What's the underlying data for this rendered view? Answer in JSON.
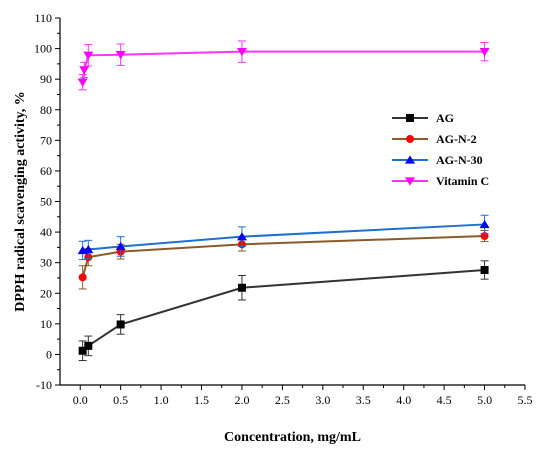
{
  "chart_data": {
    "type": "line",
    "xlabel": "Concentration, mg/mL",
    "ylabel": "DPPH radical scavenging activity, %",
    "xlim": [
      -0.25,
      5.5
    ],
    "ylim": [
      -10,
      110
    ],
    "xticks": [
      0.0,
      0.5,
      1.0,
      1.5,
      2.0,
      2.5,
      3.0,
      3.5,
      4.0,
      4.5,
      5.0,
      5.5
    ],
    "xtick_labels": [
      "0.0",
      "0.5",
      "1.0",
      "1.5",
      "2.0",
      "2.5",
      "3.0",
      "3.5",
      "4.0",
      "4.5",
      "5.0",
      "5.5"
    ],
    "yticks": [
      -10,
      0,
      10,
      20,
      30,
      40,
      50,
      60,
      70,
      80,
      90,
      100,
      110
    ],
    "ytick_labels": [
      "-10",
      "0",
      "10",
      "20",
      "30",
      "40",
      "50",
      "60",
      "70",
      "80",
      "90",
      "100",
      "110"
    ],
    "legend_position": "right-center",
    "grid": false,
    "series": [
      {
        "name": "AG",
        "color": "#333333",
        "marker_color": "#000000",
        "marker": "square",
        "x": [
          0.03,
          0.1,
          0.5,
          2.0,
          5.0
        ],
        "y": [
          1.2,
          2.8,
          9.8,
          21.8,
          27.6
        ],
        "err": [
          3.2,
          3.2,
          3.2,
          4.0,
          3.0
        ]
      },
      {
        "name": "AG-N-2",
        "color": "#8B5A2B",
        "marker_color": "#ff0000",
        "marker": "circle",
        "x": [
          0.03,
          0.1,
          0.5,
          2.0,
          5.0
        ],
        "y": [
          25.2,
          31.8,
          33.6,
          36.0,
          38.7
        ],
        "err": [
          3.8,
          2.8,
          2.4,
          2.2,
          1.8
        ]
      },
      {
        "name": "AG-N-30",
        "color": "#1f6fd1",
        "marker_color": "#0000ff",
        "marker": "triangle-up",
        "x": [
          0.03,
          0.1,
          0.5,
          2.0,
          5.0
        ],
        "y": [
          34.0,
          34.3,
          35.3,
          38.5,
          42.5
        ],
        "err": [
          3.0,
          3.0,
          3.2,
          3.2,
          3.0
        ]
      },
      {
        "name": "Vitamin C",
        "color": "#ff33ff",
        "marker_color": "#ff00ff",
        "marker": "triangle-down",
        "x": [
          0.03,
          0.05,
          0.1,
          0.5,
          2.0,
          5.0
        ],
        "y": [
          89.0,
          93.0,
          97.8,
          98.0,
          99.0,
          99.0
        ],
        "err": [
          2.5,
          2.5,
          3.5,
          3.5,
          3.5,
          3.0
        ]
      }
    ]
  }
}
